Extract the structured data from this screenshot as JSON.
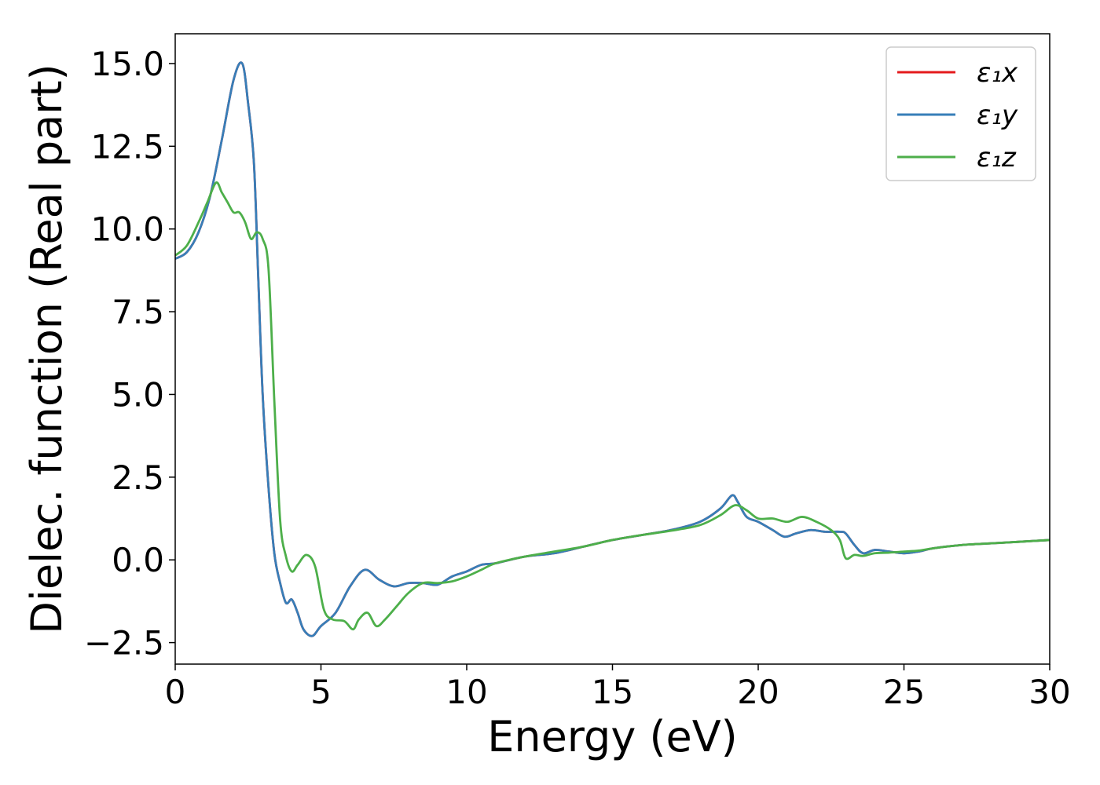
{
  "chart_data": {
    "type": "line",
    "title": "",
    "xlabel": "Energy (eV)",
    "ylabel": "Dielec. function (Real part)",
    "xlim": [
      0,
      30
    ],
    "ylim": [
      -3.15,
      15.9
    ],
    "xticks": [
      0,
      5,
      10,
      15,
      20,
      25,
      30
    ],
    "xtick_labels": [
      "0",
      "5",
      "10",
      "15",
      "20",
      "25",
      "30"
    ],
    "yticks": [
      -2.5,
      0.0,
      2.5,
      5.0,
      7.5,
      10.0,
      12.5,
      15.0
    ],
    "ytick_labels": [
      "−2.5",
      "0.0",
      "2.5",
      "5.0",
      "7.5",
      "10.0",
      "12.5",
      "15.0"
    ],
    "grid": false,
    "legend_position": "top-right",
    "series": [
      {
        "name": "ε₁x",
        "color": "#e41a1c",
        "x": [
          0,
          0.4,
          0.8,
          1.2,
          1.6,
          2.0,
          2.3,
          2.5,
          2.7,
          2.85,
          3.0,
          3.2,
          3.4,
          3.6,
          3.8,
          4.0,
          4.2,
          4.4,
          4.7,
          5.0,
          5.5,
          6.0,
          6.5,
          7.0,
          7.5,
          8.0,
          8.5,
          9.0,
          9.5,
          10.0,
          10.5,
          11.0,
          12.0,
          13.0,
          14.0,
          15.0,
          16.0,
          17.0,
          18.0,
          18.7,
          19.1,
          19.3,
          19.6,
          20.0,
          20.5,
          20.9,
          21.3,
          21.8,
          22.3,
          22.8,
          23.0,
          23.3,
          23.6,
          24.0,
          24.5,
          25.0,
          25.5,
          26.0,
          27.0,
          28.0,
          29.0,
          30.0
        ],
        "values": [
          9.1,
          9.3,
          9.9,
          11.0,
          12.7,
          14.5,
          15.0,
          13.8,
          12.0,
          8.5,
          5.0,
          2.2,
          0.2,
          -0.7,
          -1.3,
          -1.2,
          -1.6,
          -2.1,
          -2.3,
          -2.0,
          -1.6,
          -0.8,
          -0.3,
          -0.6,
          -0.8,
          -0.7,
          -0.7,
          -0.75,
          -0.5,
          -0.35,
          -0.15,
          -0.1,
          0.1,
          0.2,
          0.4,
          0.6,
          0.75,
          0.9,
          1.15,
          1.55,
          1.95,
          1.75,
          1.3,
          1.15,
          0.9,
          0.7,
          0.8,
          0.9,
          0.85,
          0.85,
          0.8,
          0.45,
          0.2,
          0.3,
          0.25,
          0.2,
          0.25,
          0.35,
          0.45,
          0.5,
          0.55,
          0.6
        ]
      },
      {
        "name": "ε₁y",
        "color": "#377eb8",
        "x": [
          0,
          0.4,
          0.8,
          1.2,
          1.6,
          2.0,
          2.3,
          2.5,
          2.7,
          2.85,
          3.0,
          3.2,
          3.4,
          3.6,
          3.8,
          4.0,
          4.2,
          4.4,
          4.7,
          5.0,
          5.5,
          6.0,
          6.5,
          7.0,
          7.5,
          8.0,
          8.5,
          9.0,
          9.5,
          10.0,
          10.5,
          11.0,
          12.0,
          13.0,
          14.0,
          15.0,
          16.0,
          17.0,
          18.0,
          18.7,
          19.1,
          19.3,
          19.6,
          20.0,
          20.5,
          20.9,
          21.3,
          21.8,
          22.3,
          22.8,
          23.0,
          23.3,
          23.6,
          24.0,
          24.5,
          25.0,
          25.5,
          26.0,
          27.0,
          28.0,
          29.0,
          30.0
        ],
        "values": [
          9.1,
          9.3,
          9.9,
          11.0,
          12.7,
          14.5,
          15.0,
          13.8,
          12.0,
          8.5,
          5.0,
          2.2,
          0.2,
          -0.7,
          -1.3,
          -1.2,
          -1.6,
          -2.1,
          -2.3,
          -2.0,
          -1.6,
          -0.8,
          -0.3,
          -0.6,
          -0.8,
          -0.7,
          -0.7,
          -0.75,
          -0.5,
          -0.35,
          -0.15,
          -0.1,
          0.1,
          0.2,
          0.4,
          0.6,
          0.75,
          0.9,
          1.15,
          1.55,
          1.95,
          1.75,
          1.3,
          1.15,
          0.9,
          0.7,
          0.8,
          0.9,
          0.85,
          0.85,
          0.8,
          0.45,
          0.2,
          0.3,
          0.25,
          0.2,
          0.25,
          0.35,
          0.45,
          0.5,
          0.55,
          0.6
        ]
      },
      {
        "name": "ε₁z",
        "color": "#4daf4a",
        "x": [
          0,
          0.4,
          0.8,
          1.1,
          1.4,
          1.6,
          1.8,
          2.0,
          2.2,
          2.4,
          2.6,
          2.8,
          3.0,
          3.2,
          3.4,
          3.6,
          3.8,
          4.0,
          4.2,
          4.5,
          4.8,
          5.1,
          5.4,
          5.8,
          6.1,
          6.3,
          6.6,
          6.9,
          7.2,
          7.6,
          8.0,
          8.5,
          9.0,
          9.5,
          10.0,
          10.5,
          11.0,
          12.0,
          13.0,
          14.0,
          15.0,
          16.0,
          17.0,
          18.0,
          18.7,
          19.2,
          19.6,
          20.0,
          20.5,
          21.0,
          21.5,
          22.0,
          22.5,
          22.8,
          23.0,
          23.3,
          23.6,
          24.0,
          24.5,
          25.0,
          25.5,
          26.0,
          27.0,
          28.0,
          29.0,
          30.0
        ],
        "values": [
          9.2,
          9.5,
          10.2,
          10.8,
          11.4,
          11.1,
          10.8,
          10.5,
          10.5,
          10.2,
          9.7,
          9.9,
          9.7,
          8.8,
          4.8,
          1.2,
          0.1,
          -0.35,
          -0.15,
          0.15,
          -0.2,
          -1.5,
          -1.8,
          -1.85,
          -2.1,
          -1.8,
          -1.6,
          -2.0,
          -1.8,
          -1.4,
          -1.0,
          -0.7,
          -0.7,
          -0.65,
          -0.5,
          -0.3,
          -0.1,
          0.1,
          0.25,
          0.4,
          0.6,
          0.75,
          0.88,
          1.05,
          1.35,
          1.65,
          1.5,
          1.25,
          1.25,
          1.15,
          1.3,
          1.15,
          0.9,
          0.6,
          0.05,
          0.15,
          0.12,
          0.2,
          0.22,
          0.25,
          0.28,
          0.35,
          0.45,
          0.5,
          0.55,
          0.6
        ]
      }
    ]
  }
}
